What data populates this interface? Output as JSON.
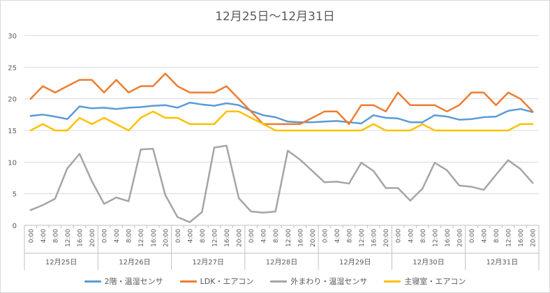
{
  "chart_data": {
    "type": "line",
    "title": "12月25日～12月31日",
    "ylim": [
      0,
      30
    ],
    "y_ticks": [
      0,
      5,
      10,
      15,
      20,
      25,
      30
    ],
    "grid": true,
    "legend_position": "bottom",
    "hour_labels": [
      "0:00",
      "4:00",
      "8:00",
      "12:00",
      "16:00",
      "20:00"
    ],
    "days": [
      "12月25日",
      "12月26日",
      "12月27日",
      "12月28日",
      "12月29日",
      "12月30日",
      "12月31日"
    ],
    "series": [
      {
        "name": "2階・温湿センサ",
        "color": "#5b9bd5",
        "values": [
          17.3,
          17.5,
          17.2,
          16.8,
          18.8,
          18.5,
          18.6,
          18.4,
          18.6,
          18.7,
          18.9,
          19.0,
          18.6,
          19.4,
          19.1,
          18.9,
          19.3,
          19.0,
          18.1,
          17.4,
          17.1,
          16.4,
          16.3,
          16.3,
          16.4,
          16.5,
          16.3,
          16.1,
          17.4,
          17.0,
          16.9,
          16.3,
          16.3,
          17.4,
          17.2,
          16.7,
          16.8,
          17.1,
          17.2,
          18.1,
          18.4,
          17.9
        ]
      },
      {
        "name": "LDK・エアコン",
        "color": "#ed7d31",
        "values": [
          20,
          22,
          21,
          22,
          23,
          23,
          21,
          23,
          21,
          22,
          22,
          24,
          22,
          21,
          21,
          21,
          22,
          20,
          18,
          16,
          16,
          16,
          16,
          17,
          18,
          18,
          16,
          19,
          19,
          18,
          21,
          19,
          19,
          19,
          18,
          19,
          21,
          21,
          19,
          21,
          20,
          18
        ]
      },
      {
        "name": "外まわり・温湿センサ",
        "color": "#a5a5a5",
        "values": [
          2.4,
          3.2,
          4.2,
          9.0,
          11.3,
          7.0,
          3.4,
          4.4,
          3.8,
          12.0,
          12.1,
          4.8,
          1.3,
          0.5,
          2.1,
          12.3,
          12.6,
          4.3,
          2.2,
          2.0,
          2.2,
          11.8,
          10.4,
          8.6,
          6.8,
          6.9,
          6.6,
          9.9,
          8.6,
          5.9,
          5.9,
          3.9,
          5.8,
          9.9,
          8.7,
          6.3,
          6.1,
          5.6,
          8.0,
          10.3,
          8.9,
          6.7
        ]
      },
      {
        "name": "主寝室・エアコン",
        "color": "#ffc000",
        "values": [
          15,
          16,
          15,
          15,
          17,
          16,
          17,
          16,
          15,
          17,
          18,
          17,
          17,
          16,
          16,
          16,
          18,
          18,
          17,
          16,
          15,
          15,
          15,
          15,
          15,
          15,
          15,
          15,
          16,
          15,
          15,
          15,
          16,
          15,
          15,
          15,
          15,
          15,
          15,
          15,
          16,
          16
        ]
      }
    ]
  }
}
